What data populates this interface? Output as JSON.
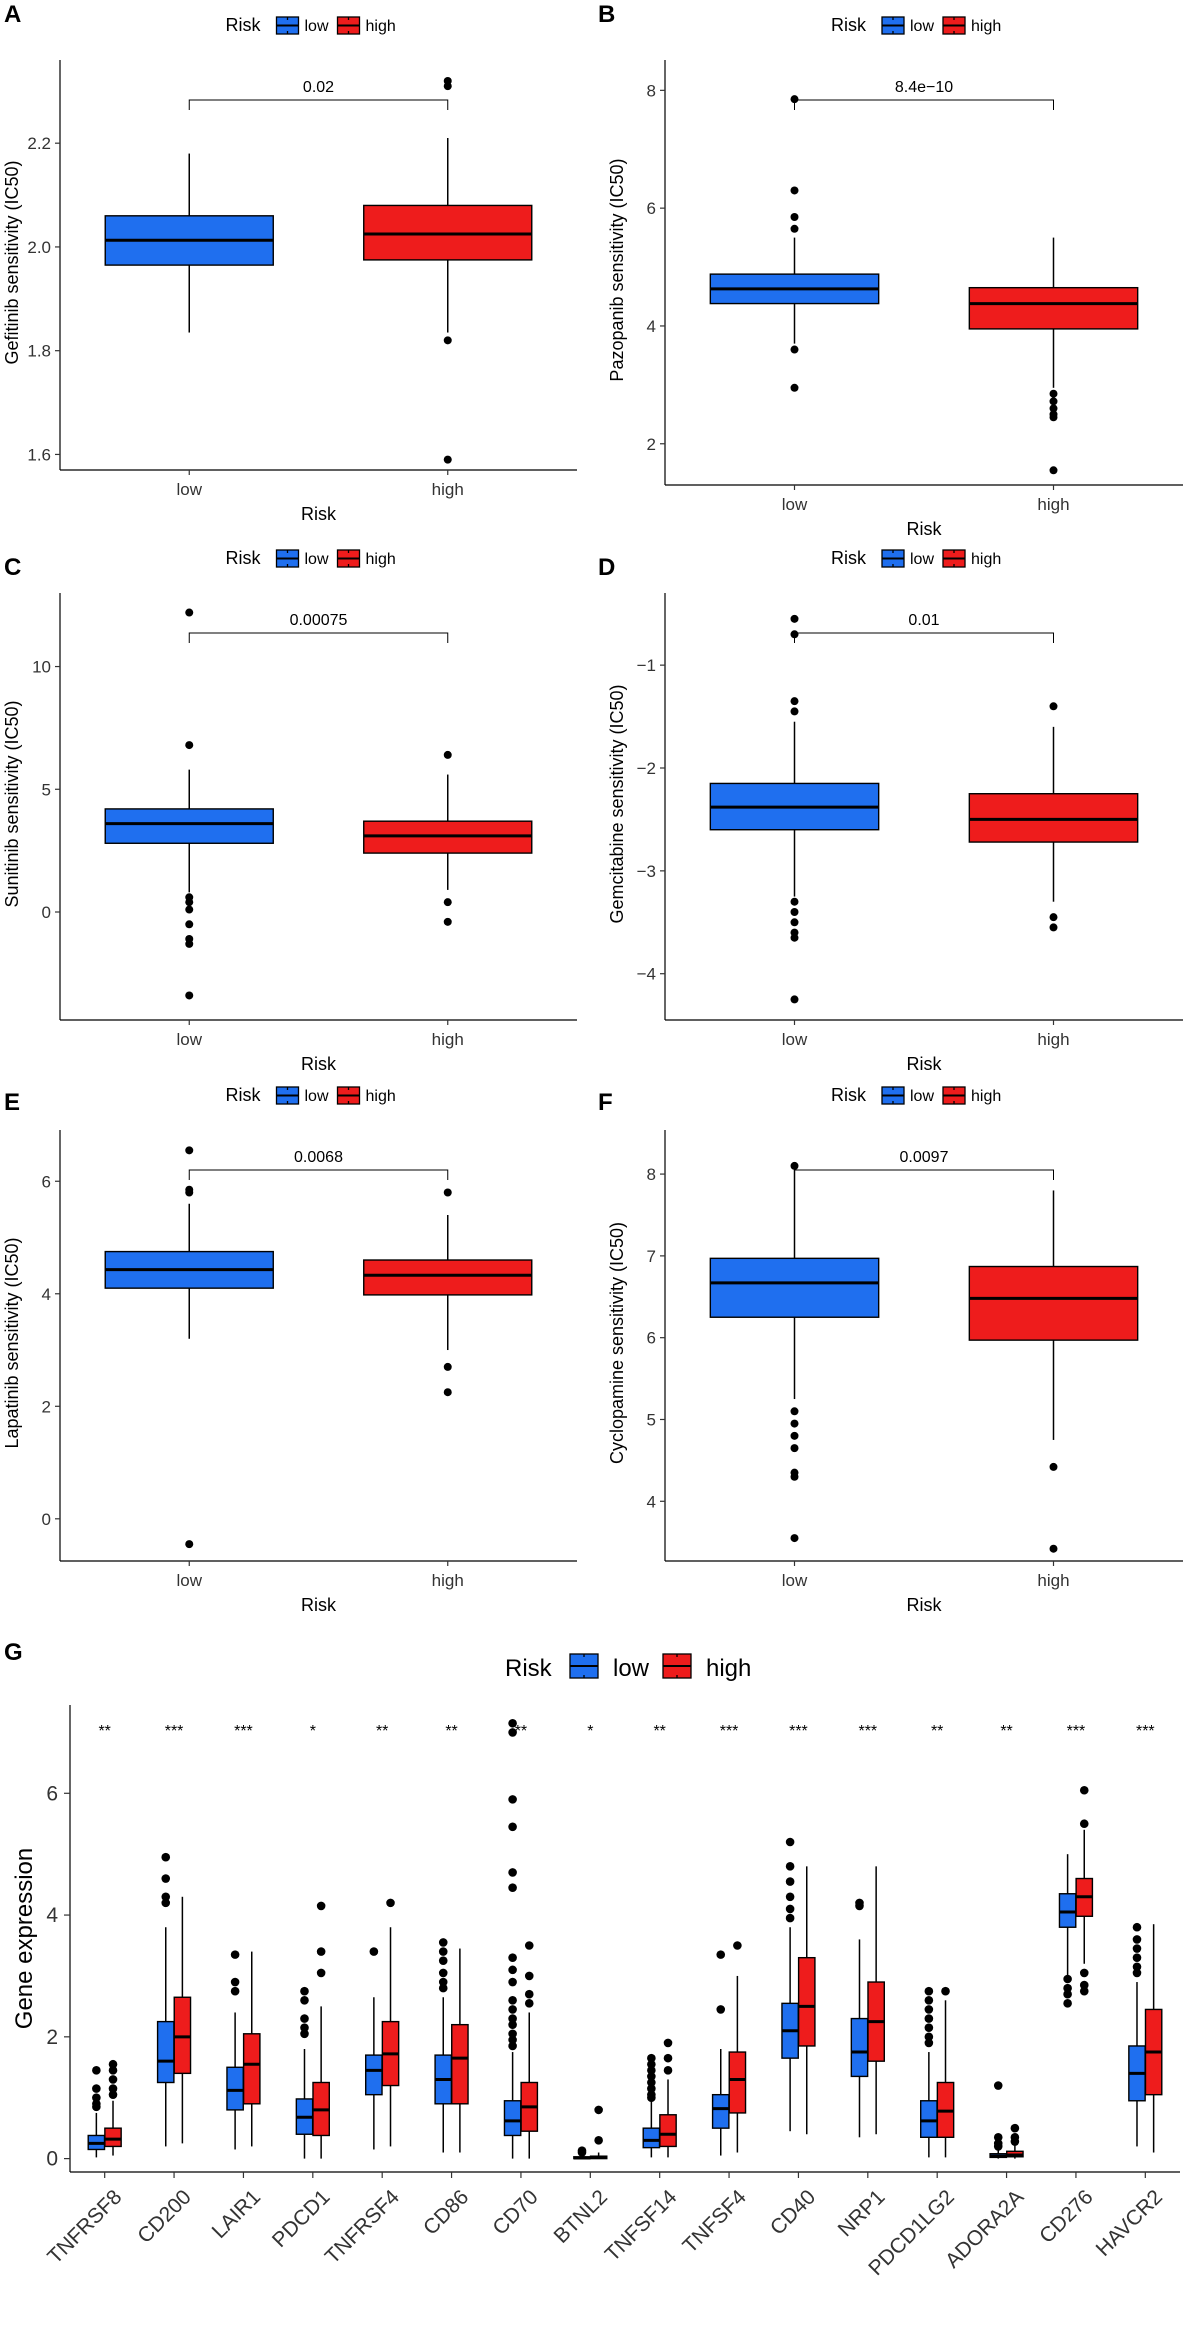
{
  "colors": {
    "low": "#1f6fef",
    "high": "#ee1c1c"
  },
  "chart_data": [
    {
      "panel": "A",
      "type": "box",
      "ylabel": "Gefitinib sensitivity (IC50)",
      "xlabel": "Risk",
      "categories": [
        "low",
        "high"
      ],
      "ylim": [
        1.57,
        2.37
      ],
      "yticks": [
        {
          "v": 1.6,
          "label": "1.6"
        },
        {
          "v": 1.8,
          "label": "1.8"
        },
        {
          "v": 2.0,
          "label": "2.0"
        },
        {
          "v": 2.2,
          "label": "2.2"
        }
      ],
      "legend": {
        "title": "Risk",
        "items": [
          "low",
          "high"
        ]
      },
      "pvalue": "0.02",
      "boxes": [
        {
          "group": "low",
          "wlo": 1.835,
          "q1": 1.965,
          "med": 2.013,
          "q3": 2.06,
          "whi": 2.18,
          "out": []
        },
        {
          "group": "high",
          "wlo": 1.835,
          "q1": 1.975,
          "med": 2.025,
          "q3": 2.08,
          "whi": 2.21,
          "out": [
            2.32,
            2.31,
            1.82,
            1.59
          ]
        }
      ]
    },
    {
      "panel": "B",
      "type": "box",
      "ylabel": "Pazopanib sensitivity (IC50)",
      "xlabel": "Risk",
      "categories": [
        "low",
        "high"
      ],
      "ylim": [
        1.3,
        8.6
      ],
      "yticks": [
        {
          "v": 2,
          "label": "2"
        },
        {
          "v": 4,
          "label": "4"
        },
        {
          "v": 6,
          "label": "6"
        },
        {
          "v": 8,
          "label": "8"
        }
      ],
      "legend": {
        "title": "Risk",
        "items": [
          "low",
          "high"
        ]
      },
      "pvalue": "8.4e−10",
      "boxes": [
        {
          "group": "low",
          "wlo": 3.7,
          "q1": 4.38,
          "med": 4.63,
          "q3": 4.88,
          "whi": 5.5,
          "out": [
            7.85,
            6.3,
            5.85,
            5.65,
            3.6,
            2.95
          ]
        },
        {
          "group": "high",
          "wlo": 2.95,
          "q1": 3.95,
          "med": 4.38,
          "q3": 4.65,
          "whi": 5.5,
          "out": [
            2.85,
            2.72,
            2.6,
            2.5,
            2.45,
            1.55
          ]
        }
      ]
    },
    {
      "panel": "C",
      "type": "box",
      "ylabel": "Sunitinib sensitivity (IC50)",
      "xlabel": "Risk",
      "categories": [
        "low",
        "high"
      ],
      "ylim": [
        -4.4,
        13.2
      ],
      "yticks": [
        {
          "v": 0,
          "label": "0"
        },
        {
          "v": 5,
          "label": "5"
        },
        {
          "v": 10,
          "label": "10"
        }
      ],
      "legend": {
        "title": "Risk",
        "items": [
          "low",
          "high"
        ]
      },
      "pvalue": "0.00075",
      "boxes": [
        {
          "group": "low",
          "wlo": 0.8,
          "q1": 2.8,
          "med": 3.6,
          "q3": 4.2,
          "whi": 5.8,
          "out": [
            12.2,
            6.8,
            0.6,
            0.4,
            0.1,
            -0.5,
            -1.1,
            -1.3,
            -3.4
          ]
        },
        {
          "group": "high",
          "wlo": 0.9,
          "q1": 2.4,
          "med": 3.1,
          "q3": 3.7,
          "whi": 5.6,
          "out": [
            6.4,
            0.4,
            -0.4
          ]
        }
      ]
    },
    {
      "panel": "D",
      "type": "box",
      "ylabel": "Gemcitabine sensitivity (IC50)",
      "xlabel": "Risk",
      "categories": [
        "low",
        "high"
      ],
      "ylim": [
        -4.45,
        -0.25
      ],
      "yticks": [
        {
          "v": -4,
          "label": "−4"
        },
        {
          "v": -3,
          "label": "−3"
        },
        {
          "v": -2,
          "label": "−2"
        },
        {
          "v": -1,
          "label": "−1"
        }
      ],
      "legend": {
        "title": "Risk",
        "items": [
          "low",
          "high"
        ]
      },
      "pvalue": "0.01",
      "boxes": [
        {
          "group": "low",
          "wlo": -3.25,
          "q1": -2.6,
          "med": -2.38,
          "q3": -2.15,
          "whi": -1.55,
          "out": [
            -0.55,
            -0.7,
            -1.35,
            -1.45,
            -3.3,
            -3.4,
            -3.5,
            -3.6,
            -3.65,
            -4.25
          ]
        },
        {
          "group": "high",
          "wlo": -3.3,
          "q1": -2.72,
          "med": -2.5,
          "q3": -2.25,
          "whi": -1.6,
          "out": [
            -1.4,
            -3.45,
            -3.55
          ]
        }
      ]
    },
    {
      "panel": "E",
      "type": "box",
      "ylabel": "Lapatinib sensitivity (IC50)",
      "xlabel": "Risk",
      "categories": [
        "low",
        "high"
      ],
      "ylim": [
        -0.75,
        7.0
      ],
      "yticks": [
        {
          "v": 0,
          "label": "0"
        },
        {
          "v": 2,
          "label": "2"
        },
        {
          "v": 4,
          "label": "4"
        },
        {
          "v": 6,
          "label": "6"
        }
      ],
      "legend": {
        "title": "Risk",
        "items": [
          "low",
          "high"
        ]
      },
      "pvalue": "0.0068",
      "boxes": [
        {
          "group": "low",
          "wlo": 3.2,
          "q1": 4.1,
          "med": 4.43,
          "q3": 4.75,
          "whi": 5.6,
          "out": [
            6.55,
            5.85,
            5.8,
            -0.45
          ]
        },
        {
          "group": "high",
          "wlo": 3.0,
          "q1": 3.98,
          "med": 4.33,
          "q3": 4.6,
          "whi": 5.4,
          "out": [
            5.8,
            2.7,
            2.25
          ]
        }
      ]
    },
    {
      "panel": "F",
      "type": "box",
      "ylabel": "Cyclopamine sensitivity (IC50)",
      "xlabel": "Risk",
      "categories": [
        "low",
        "high"
      ],
      "ylim": [
        3.27,
        8.6
      ],
      "yticks": [
        {
          "v": 4,
          "label": "4"
        },
        {
          "v": 5,
          "label": "5"
        },
        {
          "v": 6,
          "label": "6"
        },
        {
          "v": 7,
          "label": "7"
        },
        {
          "v": 8,
          "label": "8"
        }
      ],
      "legend": {
        "title": "Risk",
        "items": [
          "low",
          "high"
        ]
      },
      "pvalue": "0.0097",
      "boxes": [
        {
          "group": "low",
          "wlo": 5.25,
          "q1": 6.25,
          "med": 6.67,
          "q3": 6.97,
          "whi": 8.05,
          "out": [
            8.1,
            5.1,
            4.95,
            4.8,
            4.65,
            4.35,
            4.3,
            3.55
          ]
        },
        {
          "group": "high",
          "wlo": 4.75,
          "q1": 5.97,
          "med": 6.48,
          "q3": 6.87,
          "whi": 7.8,
          "out": [
            4.42,
            3.42
          ]
        }
      ]
    },
    {
      "panel": "G",
      "type": "box",
      "ylabel": "Gene expression",
      "xlabel": "",
      "ylim": [
        -0.22,
        7.45
      ],
      "yticks": [
        {
          "v": 0,
          "label": "0"
        },
        {
          "v": 2,
          "label": "2"
        },
        {
          "v": 4,
          "label": "4"
        },
        {
          "v": 6,
          "label": "6"
        }
      ],
      "legend": {
        "title": "Risk",
        "items": [
          "low",
          "high"
        ]
      },
      "genes": [
        {
          "name": "TNFRSF8",
          "sig": "**",
          "low": {
            "wlo": 0.02,
            "q1": 0.15,
            "med": 0.25,
            "q3": 0.38,
            "whi": 0.75,
            "out": [
              1.45,
              1.15,
              1.0,
              0.9,
              0.85
            ]
          },
          "high": {
            "wlo": 0.05,
            "q1": 0.2,
            "med": 0.32,
            "q3": 0.5,
            "whi": 0.95,
            "out": [
              1.55,
              1.45,
              1.3,
              1.15,
              1.05
            ]
          }
        },
        {
          "name": "CD200",
          "sig": "***",
          "low": {
            "wlo": 0.2,
            "q1": 1.25,
            "med": 1.6,
            "q3": 2.25,
            "whi": 3.8,
            "out": [
              4.95,
              4.6,
              4.3,
              4.2
            ]
          },
          "high": {
            "wlo": 0.25,
            "q1": 1.4,
            "med": 2.0,
            "q3": 2.65,
            "whi": 4.3,
            "out": []
          }
        },
        {
          "name": "LAIR1",
          "sig": "***",
          "low": {
            "wlo": 0.15,
            "q1": 0.8,
            "med": 1.12,
            "q3": 1.5,
            "whi": 2.4,
            "out": [
              3.35,
              2.9,
              2.75
            ]
          },
          "high": {
            "wlo": 0.2,
            "q1": 0.9,
            "med": 1.55,
            "q3": 2.05,
            "whi": 3.4,
            "out": []
          }
        },
        {
          "name": "PDCD1",
          "sig": "*",
          "low": {
            "wlo": 0.0,
            "q1": 0.4,
            "med": 0.68,
            "q3": 0.98,
            "whi": 1.8,
            "out": [
              2.75,
              2.6,
              2.3,
              2.15,
              2.05
            ]
          },
          "high": {
            "wlo": 0.0,
            "q1": 0.38,
            "med": 0.8,
            "q3": 1.25,
            "whi": 2.5,
            "out": [
              4.15,
              3.4,
              3.05
            ]
          }
        },
        {
          "name": "TNFRSF4",
          "sig": "**",
          "low": {
            "wlo": 0.15,
            "q1": 1.05,
            "med": 1.45,
            "q3": 1.7,
            "whi": 2.65,
            "out": [
              3.4
            ]
          },
          "high": {
            "wlo": 0.2,
            "q1": 1.2,
            "med": 1.72,
            "q3": 2.25,
            "whi": 3.8,
            "out": [
              4.2
            ]
          }
        },
        {
          "name": "CD86",
          "sig": "**",
          "low": {
            "wlo": 0.1,
            "q1": 0.9,
            "med": 1.3,
            "q3": 1.7,
            "whi": 2.65,
            "out": [
              3.55,
              3.4,
              3.25,
              3.05,
              2.9,
              2.8
            ]
          },
          "high": {
            "wlo": 0.1,
            "q1": 0.9,
            "med": 1.65,
            "q3": 2.2,
            "whi": 3.45,
            "out": []
          }
        },
        {
          "name": "CD70",
          "sig": "**",
          "low": {
            "wlo": 0.0,
            "q1": 0.38,
            "med": 0.62,
            "q3": 0.95,
            "whi": 1.75,
            "out": [
              7.15,
              7.0,
              5.9,
              5.45,
              4.7,
              4.45,
              3.3,
              3.1,
              2.9,
              2.6,
              2.45,
              2.3,
              2.2,
              2.05,
              1.95,
              1.85
            ]
          },
          "high": {
            "wlo": 0.0,
            "q1": 0.45,
            "med": 0.85,
            "q3": 1.25,
            "whi": 2.4,
            "out": [
              3.5,
              3.0,
              2.7,
              2.55
            ]
          }
        },
        {
          "name": "BTNL2",
          "sig": "*",
          "low": {
            "wlo": 0.0,
            "q1": 0.0,
            "med": 0.01,
            "q3": 0.03,
            "whi": 0.08,
            "out": [
              0.1,
              0.13
            ]
          },
          "high": {
            "wlo": 0.0,
            "q1": 0.0,
            "med": 0.02,
            "q3": 0.04,
            "whi": 0.1,
            "out": [
              0.3,
              0.8
            ]
          }
        },
        {
          "name": "TNFSF14",
          "sig": "**",
          "low": {
            "wlo": 0.02,
            "q1": 0.18,
            "med": 0.3,
            "q3": 0.5,
            "whi": 0.95,
            "out": [
              1.65,
              1.55,
              1.45,
              1.35,
              1.25,
              1.15,
              1.05,
              1.0
            ]
          },
          "high": {
            "wlo": 0.02,
            "q1": 0.2,
            "med": 0.4,
            "q3": 0.72,
            "whi": 1.3,
            "out": [
              1.9,
              1.65,
              1.45
            ]
          }
        },
        {
          "name": "TNFSF4",
          "sig": "***",
          "low": {
            "wlo": 0.05,
            "q1": 0.5,
            "med": 0.82,
            "q3": 1.05,
            "whi": 1.8,
            "out": [
              3.35,
              2.45
            ]
          },
          "high": {
            "wlo": 0.1,
            "q1": 0.75,
            "med": 1.3,
            "q3": 1.75,
            "whi": 3.0,
            "out": [
              3.5
            ]
          }
        },
        {
          "name": "CD40",
          "sig": "***",
          "low": {
            "wlo": 0.45,
            "q1": 1.65,
            "med": 2.1,
            "q3": 2.55,
            "whi": 3.8,
            "out": [
              5.2,
              4.8,
              4.55,
              4.3,
              4.1,
              3.95
            ]
          },
          "high": {
            "wlo": 0.4,
            "q1": 1.85,
            "med": 2.5,
            "q3": 3.3,
            "whi": 4.8,
            "out": []
          }
        },
        {
          "name": "NRP1",
          "sig": "***",
          "low": {
            "wlo": 0.35,
            "q1": 1.35,
            "med": 1.75,
            "q3": 2.3,
            "whi": 3.6,
            "out": [
              4.2,
              4.15
            ]
          },
          "high": {
            "wlo": 0.4,
            "q1": 1.6,
            "med": 2.25,
            "q3": 2.9,
            "whi": 4.8,
            "out": []
          }
        },
        {
          "name": "PDCD1LG2",
          "sig": "**",
          "low": {
            "wlo": 0.02,
            "q1": 0.35,
            "med": 0.62,
            "q3": 0.95,
            "whi": 1.75,
            "out": [
              2.75,
              2.6,
              2.45,
              2.3,
              2.15,
              2.0,
              1.9
            ]
          },
          "high": {
            "wlo": 0.02,
            "q1": 0.35,
            "med": 0.78,
            "q3": 1.25,
            "whi": 2.6,
            "out": [
              2.75
            ]
          }
        },
        {
          "name": "ADORA2A",
          "sig": "**",
          "low": {
            "wlo": 0.0,
            "q1": 0.02,
            "med": 0.04,
            "q3": 0.08,
            "whi": 0.16,
            "out": [
              1.2,
              0.35,
              0.25,
              0.2
            ]
          },
          "high": {
            "wlo": 0.0,
            "q1": 0.03,
            "med": 0.06,
            "q3": 0.12,
            "whi": 0.24,
            "out": [
              0.5,
              0.35,
              0.28
            ]
          }
        },
        {
          "name": "CD276",
          "sig": "***",
          "low": {
            "wlo": 3.0,
            "q1": 3.8,
            "med": 4.05,
            "q3": 4.35,
            "whi": 5.0,
            "out": [
              2.95,
              2.8,
              2.7,
              2.55
            ]
          },
          "high": {
            "wlo": 3.2,
            "q1": 3.98,
            "med": 4.3,
            "q3": 4.6,
            "whi": 5.4,
            "out": [
              6.05,
              5.5,
              3.05,
              2.85,
              2.75
            ]
          }
        },
        {
          "name": "HAVCR2",
          "sig": "***",
          "low": {
            "wlo": 0.2,
            "q1": 0.95,
            "med": 1.4,
            "q3": 1.85,
            "whi": 2.9,
            "out": [
              3.8,
              3.6,
              3.45,
              3.3,
              3.15,
              3.05
            ]
          },
          "high": {
            "wlo": 0.1,
            "q1": 1.05,
            "med": 1.75,
            "q3": 2.45,
            "whi": 3.85,
            "out": []
          }
        }
      ]
    }
  ]
}
